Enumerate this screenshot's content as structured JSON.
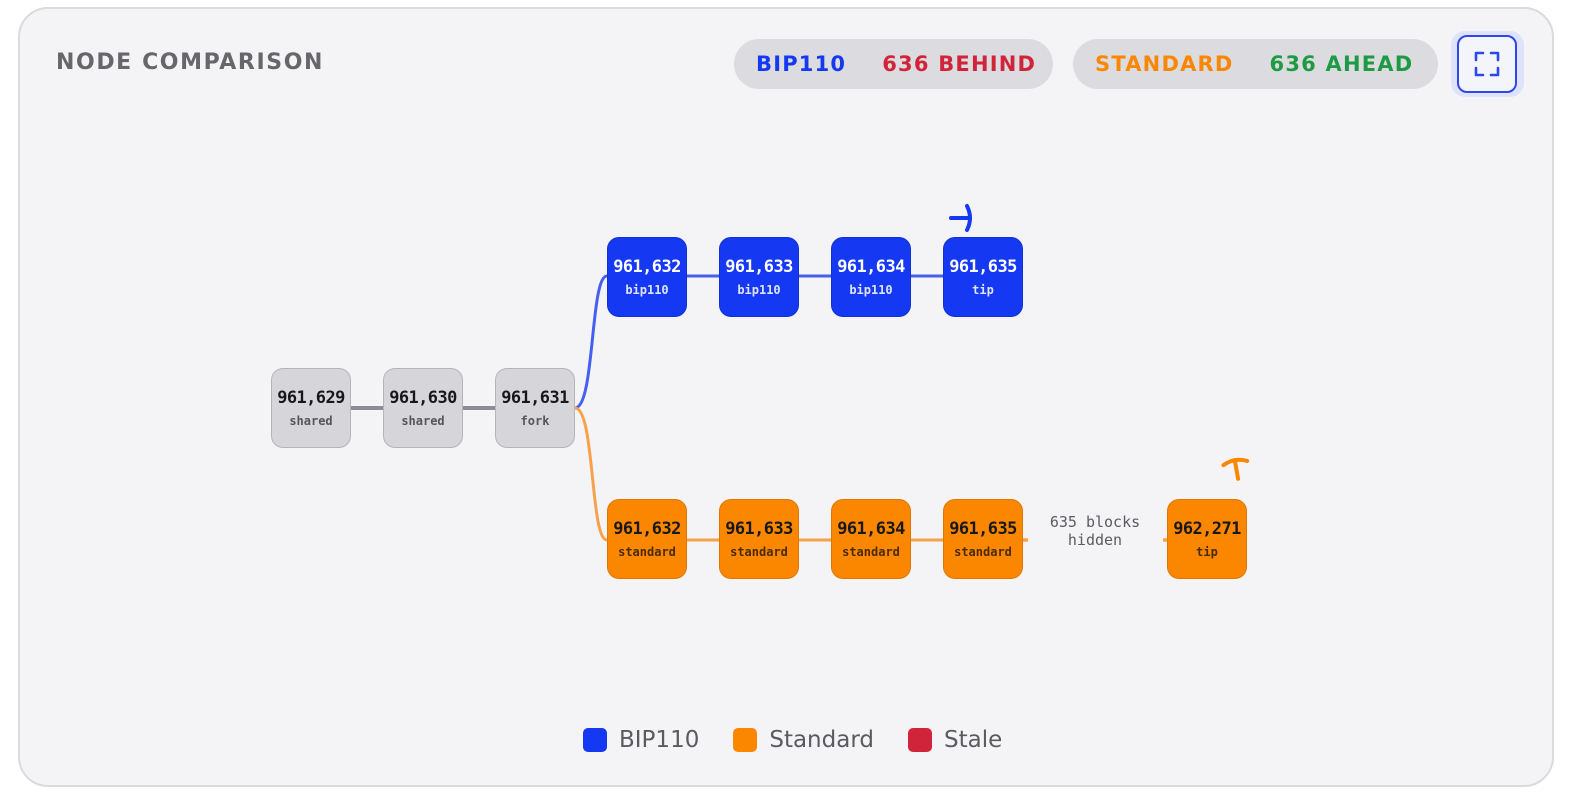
{
  "header": {
    "title": "NODE COMPARISON",
    "bip110_status": {
      "label": "BIP110",
      "status": "636 BEHIND"
    },
    "standard_status": {
      "label": "STANDARD",
      "status": "636 AHEAD"
    }
  },
  "colors": {
    "bip110": "#1538f2",
    "standard": "#fb8600",
    "stale": "#d0243a",
    "shared": "#d5d5da",
    "behind": "#d0243a",
    "ahead": "#1f9a44"
  },
  "chain": {
    "shared": [
      {
        "height": "961,629",
        "label": "shared"
      },
      {
        "height": "961,630",
        "label": "shared"
      },
      {
        "height": "961,631",
        "label": "fork"
      }
    ],
    "bip110": [
      {
        "height": "961,632",
        "label": "bip110"
      },
      {
        "height": "961,633",
        "label": "bip110"
      },
      {
        "height": "961,634",
        "label": "bip110"
      },
      {
        "height": "961,635",
        "label": "tip"
      }
    ],
    "standard": [
      {
        "height": "961,632",
        "label": "standard"
      },
      {
        "height": "961,633",
        "label": "standard"
      },
      {
        "height": "961,634",
        "label": "standard"
      },
      {
        "height": "961,635",
        "label": "standard"
      },
      {
        "height": "962,271",
        "label": "tip"
      }
    ],
    "hidden_note": "635 blocks hidden"
  },
  "legend": [
    {
      "label": "BIP110",
      "color": "#1538f2"
    },
    {
      "label": "Standard",
      "color": "#fb8600"
    },
    {
      "label": "Stale",
      "color": "#d0243a"
    }
  ]
}
